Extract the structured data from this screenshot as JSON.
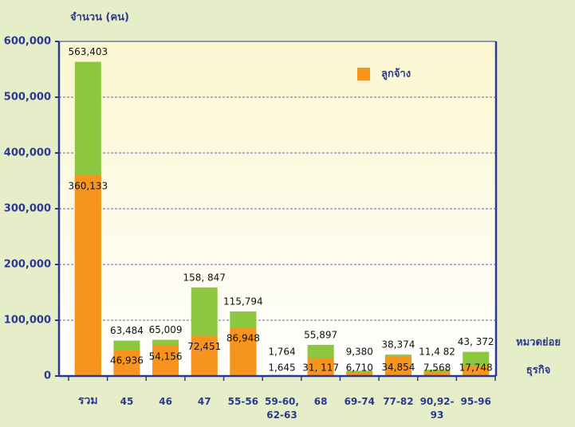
{
  "chart_data": {
    "type": "bar",
    "y_label": "จำนวน (คน)",
    "x_label": [
      "หมวดย่อย",
      "ธุรกิจ"
    ],
    "categories": [
      "รวม",
      "45",
      "46",
      "47",
      "55-56",
      "59-60, 62-63",
      "68",
      "69-74",
      "77-82",
      "90,92-93",
      "95-96"
    ],
    "values": [
      563403,
      63484,
      65009,
      158847,
      115794,
      1764,
      55897,
      9380,
      38374,
      11482,
      43372
    ],
    "value_labels": [
      "563,403",
      "63,484",
      "65,009",
      "158, 847",
      "115,794",
      "1,764",
      "55,897",
      "9,380",
      "38,374",
      "11,4 82",
      "43, 372"
    ],
    "color": "#8dc63f",
    "series": [
      {
        "name": "ลูกจ้าง",
        "color": "#f7941d",
        "values": [
          360133,
          46936,
          54156,
          72451,
          86948,
          1645,
          31117,
          6710,
          34854,
          7568,
          17748
        ],
        "value_labels": [
          "360,133",
          "46,936",
          "54,156",
          "72,451",
          "86,948",
          "1,645",
          "31, 117",
          "6,710",
          "34,854",
          "7,568",
          "17,748"
        ]
      }
    ],
    "ylim": [
      0,
      600000
    ],
    "yticks": [
      0,
      {
        "value": 100000,
        "label": "100,000"
      },
      {
        "value": 200000,
        "label": "200,000"
      },
      {
        "value": 300000,
        "label": "300,000"
      },
      {
        "value": 400000,
        "label": "400,000"
      },
      {
        "value": 500000,
        "label": "500,000"
      },
      {
        "value": 600000,
        "label": "600,000"
      }
    ],
    "grid": true,
    "legend": "upper right"
  }
}
